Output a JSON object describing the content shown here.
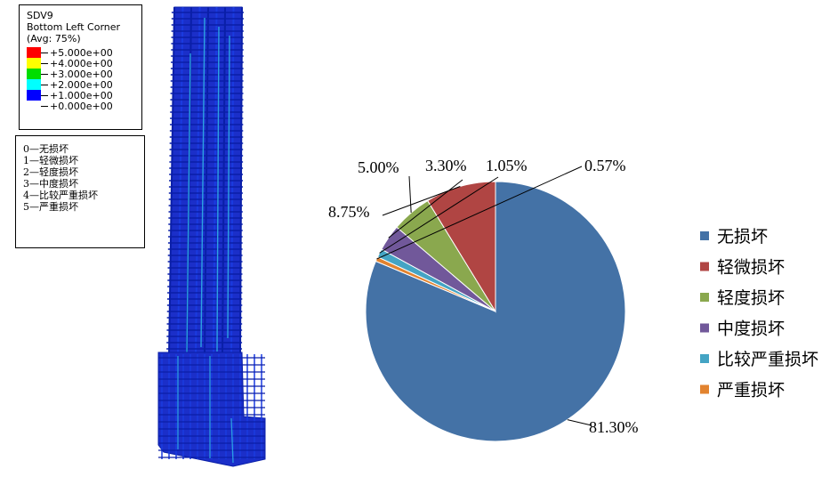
{
  "contour_legend": {
    "title_lines": [
      "SDV9",
      "Bottom Left Corner",
      "(Avg: 75%)"
    ],
    "levels": [
      {
        "label": "+5.000e+00",
        "color": "#ff0000"
      },
      {
        "label": "+4.000e+00",
        "color": "#ffff00"
      },
      {
        "label": "+3.000e+00",
        "color": "#00dd00"
      },
      {
        "label": "+2.000e+00",
        "color": "#00ffff"
      },
      {
        "label": "+1.000e+00",
        "color": "#0000ff"
      },
      {
        "label": "+0.000e+00",
        "color": "#0000ff"
      }
    ]
  },
  "damage_key": [
    "0—无损坏",
    "1—轻微损坏",
    "2—轻度损坏",
    "3—中度损坏",
    "4—比较严重损坏",
    "5—严重损坏"
  ],
  "chart_data": {
    "type": "pie",
    "title": "",
    "legend_position": "right",
    "start": "top, clockwise",
    "slices": [
      {
        "label": "无损坏",
        "value": 81.3,
        "text": "81.30%",
        "color": "#4472a6"
      },
      {
        "label": "严重损坏",
        "value": 0.57,
        "text": "0.57%",
        "color": "#e2832f"
      },
      {
        "label": "比较严重损坏",
        "value": 1.05,
        "text": "1.05%",
        "color": "#44a4c4"
      },
      {
        "label": "中度损坏",
        "value": 3.3,
        "text": "3.30%",
        "color": "#71589a"
      },
      {
        "label": "轻度损坏",
        "value": 5.0,
        "text": "5.00%",
        "color": "#8aa84e"
      },
      {
        "label": "轻微损坏",
        "value": 8.75,
        "text": "8.75%",
        "color": "#b04543"
      }
    ],
    "legend_order": [
      "无损坏",
      "轻微损坏",
      "轻度损坏",
      "中度损坏",
      "比较严重损坏",
      "严重损坏"
    ]
  }
}
